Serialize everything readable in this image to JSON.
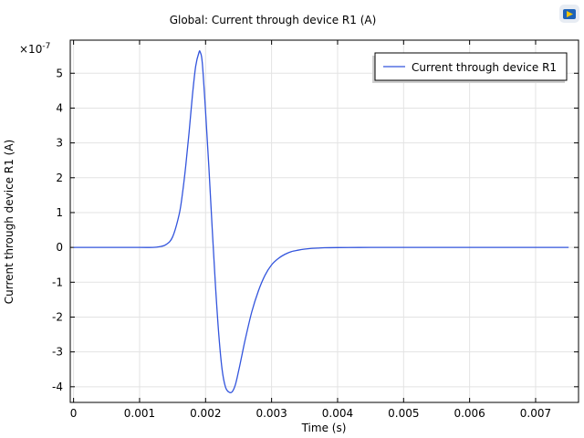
{
  "chart_data": {
    "type": "line",
    "title": "Global: Current through device R1 (A)",
    "xlabel": "Time (s)",
    "ylabel": "Current through device R1 (A)",
    "y_multiplier_base": "×10",
    "y_multiplier_exponent": "-7",
    "xlim": [
      -5e-05,
      0.00765
    ],
    "ylim": [
      -4.45,
      5.95
    ],
    "x_ticks": [
      0,
      0.001,
      0.002,
      0.003,
      0.004,
      0.005,
      0.006,
      0.007
    ],
    "x_tick_labels": [
      "0",
      "0.001",
      "0.002",
      "0.003",
      "0.004",
      "0.005",
      "0.006",
      "0.007"
    ],
    "y_ticks": [
      -4,
      -3,
      -2,
      -1,
      0,
      1,
      2,
      3,
      4,
      5
    ],
    "y_tick_labels": [
      "-4",
      "-3",
      "-2",
      "-1",
      "0",
      "1",
      "2",
      "3",
      "4",
      "5"
    ],
    "grid": true,
    "legend_position": "top-right",
    "series": [
      {
        "name": "Current through device R1",
        "color": "#3355dd",
        "x": [
          0,
          0.0005,
          0.001,
          0.0012,
          0.0013,
          0.0014,
          0.0015,
          0.0016,
          0.00165,
          0.0017,
          0.00175,
          0.0018,
          0.00185,
          0.0019,
          0.00192,
          0.00195,
          0.002,
          0.00205,
          0.0021,
          0.00215,
          0.0022,
          0.00225,
          0.0023,
          0.00235,
          0.0024,
          0.00245,
          0.0025,
          0.00255,
          0.0026,
          0.0027,
          0.0028,
          0.0029,
          0.003,
          0.0031,
          0.0032,
          0.0033,
          0.0034,
          0.0035,
          0.0036,
          0.0037,
          0.0038,
          0.004,
          0.0045,
          0.005,
          0.006,
          0.007,
          0.0075
        ],
        "y": [
          0,
          0,
          0,
          0.0,
          0.02,
          0.08,
          0.3,
          0.95,
          1.55,
          2.35,
          3.3,
          4.35,
          5.2,
          5.6,
          5.6,
          5.3,
          3.9,
          2.3,
          0.55,
          -1.1,
          -2.5,
          -3.5,
          -4.0,
          -4.15,
          -4.15,
          -3.95,
          -3.55,
          -3.1,
          -2.65,
          -1.85,
          -1.25,
          -0.8,
          -0.5,
          -0.32,
          -0.2,
          -0.12,
          -0.08,
          -0.05,
          -0.03,
          -0.02,
          -0.01,
          -0.005,
          0,
          0,
          0,
          0,
          0
        ]
      }
    ]
  },
  "toolbar": {
    "logo_icon": "comsol-logo-icon"
  }
}
